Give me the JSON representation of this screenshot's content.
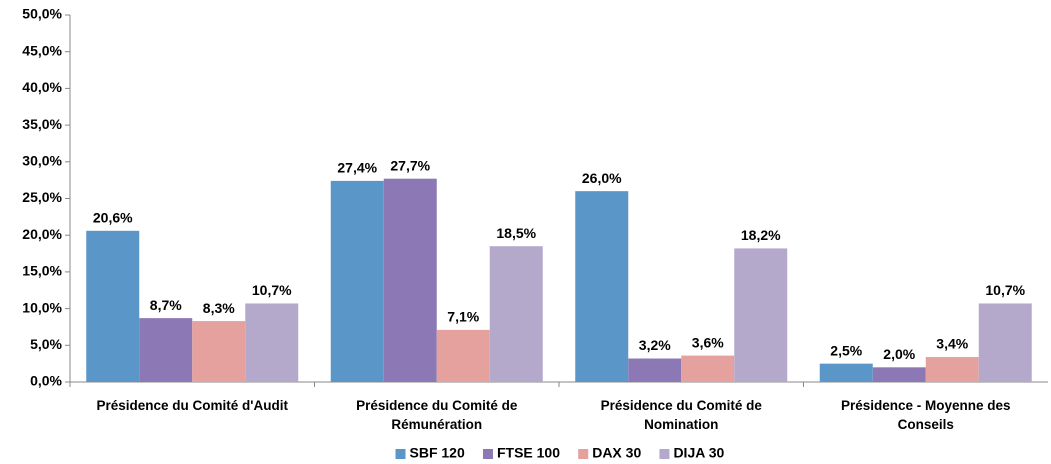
{
  "chart_data": {
    "type": "bar",
    "categories": [
      "Présidence du Comité d'Audit",
      "Présidence du Comité de Rémunération",
      "Présidence du Comité de Nomination",
      "Présidence - Moyenne des Conseils"
    ],
    "series": [
      {
        "name": "SBF 120",
        "color": "#5b96c8",
        "values": [
          20.6,
          27.4,
          26.0,
          2.5
        ],
        "value_labels": [
          "20,6%",
          "27,4%",
          "26,0%",
          "2,5%"
        ]
      },
      {
        "name": "FTSE 100",
        "color": "#8b78b4",
        "values": [
          8.7,
          27.7,
          3.2,
          2.0
        ],
        "value_labels": [
          "8,7%",
          "27,7%",
          "3,2%",
          "2,0%"
        ]
      },
      {
        "name": "DAX 30",
        "color": "#e5a19e",
        "values": [
          8.3,
          7.1,
          3.6,
          3.4
        ],
        "value_labels": [
          "8,3%",
          "7,1%",
          "3,6%",
          "3,4%"
        ]
      },
      {
        "name": "DIJA 30",
        "color": "#b5a9cb",
        "values": [
          10.7,
          18.5,
          18.2,
          10.7
        ],
        "value_labels": [
          "10,7%",
          "18,5%",
          "18,2%",
          "10,7%"
        ]
      }
    ],
    "ylim": [
      0,
      50
    ],
    "yticks": [
      {
        "value": 0,
        "label": "0,0%"
      },
      {
        "value": 5,
        "label": "5,0%"
      },
      {
        "value": 10,
        "label": "10,0%"
      },
      {
        "value": 15,
        "label": "15,0%"
      },
      {
        "value": 20,
        "label": "20,0%"
      },
      {
        "value": 25,
        "label": "25,0%"
      },
      {
        "value": 30,
        "label": "30,0%"
      },
      {
        "value": 35,
        "label": "35,0%"
      },
      {
        "value": 40,
        "label": "40,0%"
      },
      {
        "value": 45,
        "label": "45,0%"
      },
      {
        "value": 50,
        "label": "50,0%"
      }
    ],
    "grid": false,
    "legend": "bottom"
  }
}
